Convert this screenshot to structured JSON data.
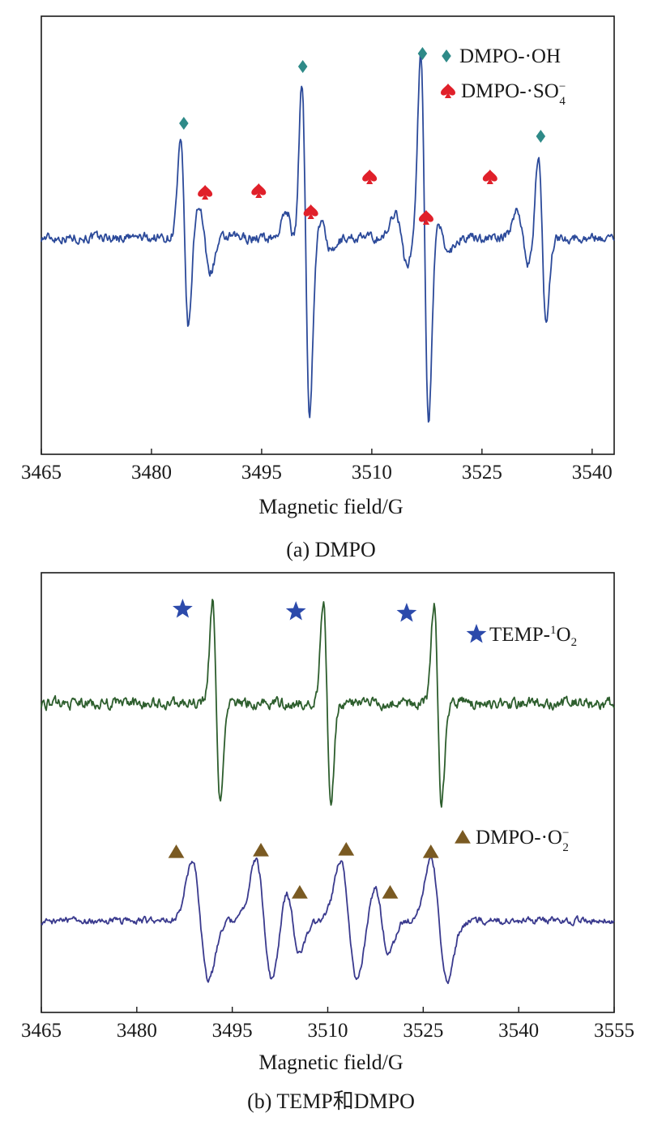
{
  "chart_data": [
    {
      "type": "line",
      "xlabel": "Magnetic field/G",
      "caption": "(a) DMPO",
      "xlim": [
        3465,
        3543
      ],
      "xticks": [
        3465,
        3480,
        3495,
        3510,
        3525,
        3540
      ],
      "y_axis": "no tick labels",
      "grid": false,
      "series": [
        {
          "color": "#2c4a9a",
          "peaks": [
            {
              "x": 3484.5,
              "amplitude": 1.05,
              "width": 0.55
            },
            {
              "x": 3501.0,
              "amplitude": 1.95,
              "width": 0.55
            },
            {
              "x": 3517.2,
              "amplitude": 2.05,
              "width": 0.55
            },
            {
              "x": 3533.2,
              "amplitude": 0.95,
              "width": 0.55
            },
            {
              "x": 3487.2,
              "amplitude": 0.38,
              "width": 0.8
            },
            {
              "x": 3499.2,
              "amplitude": 0.3,
              "width": 0.8
            },
            {
              "x": 3503.8,
              "amplitude": 0.17,
              "width": 0.8
            },
            {
              "x": 3514.0,
              "amplitude": 0.3,
              "width": 0.8
            },
            {
              "x": 3519.7,
              "amplitude": 0.15,
              "width": 0.8
            },
            {
              "x": 3530.6,
              "amplitude": 0.32,
              "width": 0.8
            }
          ]
        }
      ],
      "markers": {
        "DMPO-·OH": {
          "symbol": "diamond",
          "color": "#2e8a88",
          "x": [
            3484.4,
            3500.6,
            3516.9,
            3533.0
          ]
        },
        "DMPO-·SO4-": {
          "symbol": "spade",
          "color": "#e0202a",
          "x": [
            3487.3,
            3494.6,
            3501.7,
            3509.7,
            3517.4,
            3526.1
          ]
        }
      },
      "legend": {
        "placement": "top-right",
        "entries": [
          {
            "symbol": "diamond",
            "color": "#2e8a88",
            "text": "DMPO-·OH",
            "superscript": "",
            "subscript": ""
          },
          {
            "symbol": "spade",
            "color": "#e0202a",
            "text": "DMPO-·SO",
            "superscript": "−",
            "subscript": "4"
          }
        ]
      }
    },
    {
      "type": "line",
      "xlabel": "Magnetic field/G",
      "caption": "(b) TEMP和DMPO",
      "xlim": [
        3465,
        3555
      ],
      "xticks": [
        3465,
        3480,
        3495,
        3510,
        3525,
        3540,
        3555
      ],
      "y_axis": "no tick labels",
      "grid": false,
      "series": [
        {
          "color": "#2d5e2d",
          "peaks": [
            {
              "x": 3492.5,
              "amplitude": 1.0,
              "width": 0.6
            },
            {
              "x": 3509.9,
              "amplitude": 1.0,
              "width": 0.6
            },
            {
              "x": 3527.3,
              "amplitude": 1.0,
              "width": 0.6
            }
          ]
        },
        {
          "color": "#3a3a8e",
          "peaks": [
            {
              "x": 3490.0,
              "amplitude": 1.0,
              "width": 1.3
            },
            {
              "x": 3500.0,
              "amplitude": 1.0,
              "width": 1.3
            },
            {
              "x": 3504.5,
              "amplitude": 0.55,
              "width": 1.1
            },
            {
              "x": 3513.3,
              "amplitude": 1.0,
              "width": 1.3
            },
            {
              "x": 3518.5,
              "amplitude": 0.55,
              "width": 1.1
            },
            {
              "x": 3527.5,
              "amplitude": 1.0,
              "width": 1.3
            }
          ]
        }
      ],
      "markers": {
        "TEMP-1O2": {
          "symbol": "star",
          "color": "#2c4aab",
          "x": [
            3487.2,
            3505.0,
            3522.4
          ]
        },
        "DMPO-·O2-": {
          "symbol": "triangle",
          "color": "#7a5a22",
          "x": [
            3486.2,
            3499.5,
            3505.6,
            3512.9,
            3519.8,
            3526.2
          ]
        }
      },
      "legend": {
        "placement": "right",
        "entries": [
          {
            "symbol": "star",
            "color": "#2c4aab",
            "text": "TEMP-",
            "superscript": "1",
            "after": "O",
            "subscript": "2"
          },
          {
            "symbol": "triangle",
            "color": "#7a5a22",
            "text": "DMPO-·O",
            "superscript": "−",
            "subscript": "2"
          }
        ]
      }
    }
  ]
}
